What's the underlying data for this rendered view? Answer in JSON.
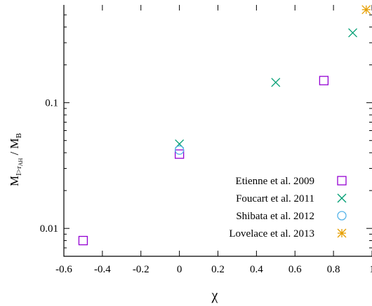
{
  "chart_data": {
    "type": "scatter",
    "x_scale": "linear",
    "y_scale": "log",
    "xlim": [
      -0.6,
      1.0
    ],
    "ylim": [
      0.006,
      0.6
    ],
    "xlabel": "χ",
    "ylabel": {
      "main": "M",
      "main_sub": "I>r",
      "main_sub_sub": "AH",
      "separator": " / ",
      "denom": "M",
      "denom_sub": "B"
    },
    "x_ticks": [
      -0.6,
      -0.4,
      -0.2,
      0,
      0.2,
      0.4,
      0.6,
      0.8,
      1.0
    ],
    "x_tick_labels": [
      "-0.6",
      "-0.4",
      "-0.2",
      "0",
      "0.2",
      "0.4",
      "0.6",
      "0.8",
      "1"
    ],
    "y_major_ticks": [
      0.01,
      0.1
    ],
    "y_tick_labels": [
      "0.01",
      "0.1"
    ],
    "legend_position": "bottom-right",
    "grid": false,
    "series": [
      {
        "name": "Etienne et al. 2009",
        "marker": "square",
        "color": "#9400d3",
        "points": [
          {
            "x": -0.5,
            "y": 0.008
          },
          {
            "x": 0.0,
            "y": 0.039
          },
          {
            "x": 0.75,
            "y": 0.15
          }
        ]
      },
      {
        "name": "Foucart et al. 2011",
        "marker": "cross",
        "color": "#009e73",
        "points": [
          {
            "x": 0.0,
            "y": 0.047
          },
          {
            "x": 0.5,
            "y": 0.145
          },
          {
            "x": 0.9,
            "y": 0.36
          }
        ]
      },
      {
        "name": "Shibata et al. 2012",
        "marker": "circle",
        "color": "#56b4e9",
        "points": [
          {
            "x": 0.0,
            "y": 0.042
          }
        ]
      },
      {
        "name": "Lovelace et al. 2013",
        "marker": "asterisk",
        "color": "#e69f00",
        "points": [
          {
            "x": 0.97,
            "y": 0.55
          }
        ]
      }
    ]
  }
}
